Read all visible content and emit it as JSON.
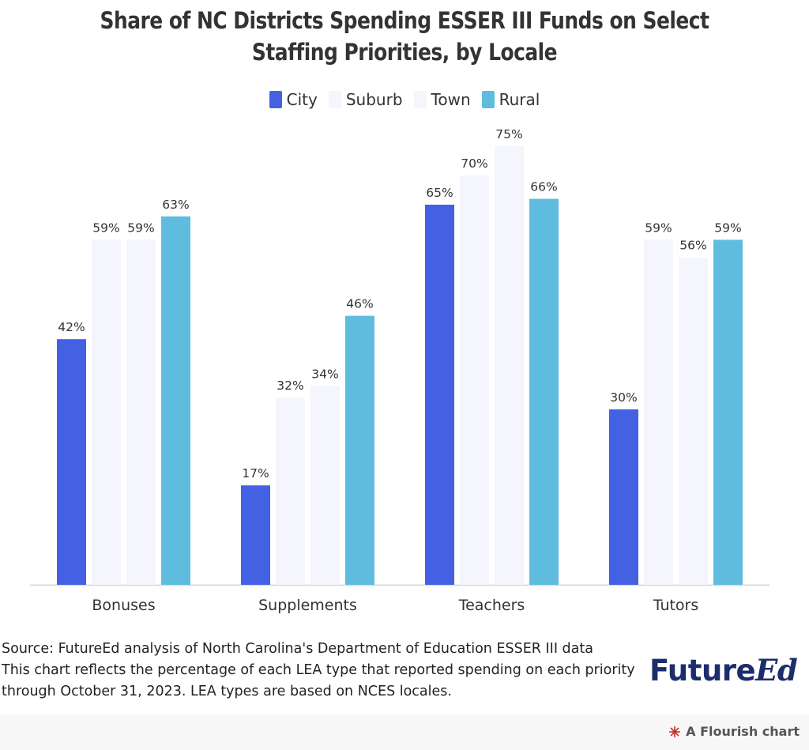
{
  "chart_data": {
    "type": "bar",
    "title": "Share of NC Districts Spending ESSER III Funds on Select Staffing Priorities, by Locale",
    "categories": [
      "Bonuses",
      "Supplements",
      "Teachers",
      "Tutors"
    ],
    "series": [
      {
        "name": "City",
        "values": [
          42,
          17,
          65,
          30
        ],
        "color": "#4461e3"
      },
      {
        "name": "Suburb",
        "values": [
          59,
          32,
          70,
          59
        ],
        "color": "#f5f6fd"
      },
      {
        "name": "Town",
        "values": [
          59,
          34,
          75,
          56
        ],
        "color": "#f5f6fd"
      },
      {
        "name": "Rural",
        "values": [
          63,
          46,
          66,
          59
        ],
        "color": "#5fbcdf"
      }
    ],
    "value_suffix": "%",
    "ylim": [
      0,
      80
    ],
    "grid": false,
    "legend_position": "top-center"
  },
  "legend": [
    {
      "label": "City",
      "color": "#4461e3"
    },
    {
      "label": "Suburb",
      "color": "#f5f6fd"
    },
    {
      "label": "Town",
      "color": "#f5f6fd"
    },
    {
      "label": "Rural",
      "color": "#5fbcdf"
    }
  ],
  "footer": {
    "source": "Source: FutureEd analysis of North Carolina's Department of Education ESSER III data",
    "note_line1": "This chart reflects the percentage of each LEA type that reported spending on each priority",
    "note_line2": "through October 31, 2023. LEA types are based on NCES locales."
  },
  "brand": {
    "main": "Future",
    "ed": "Ed"
  },
  "flourish": {
    "label": "A Flourish chart",
    "icon": "flourish-icon"
  }
}
